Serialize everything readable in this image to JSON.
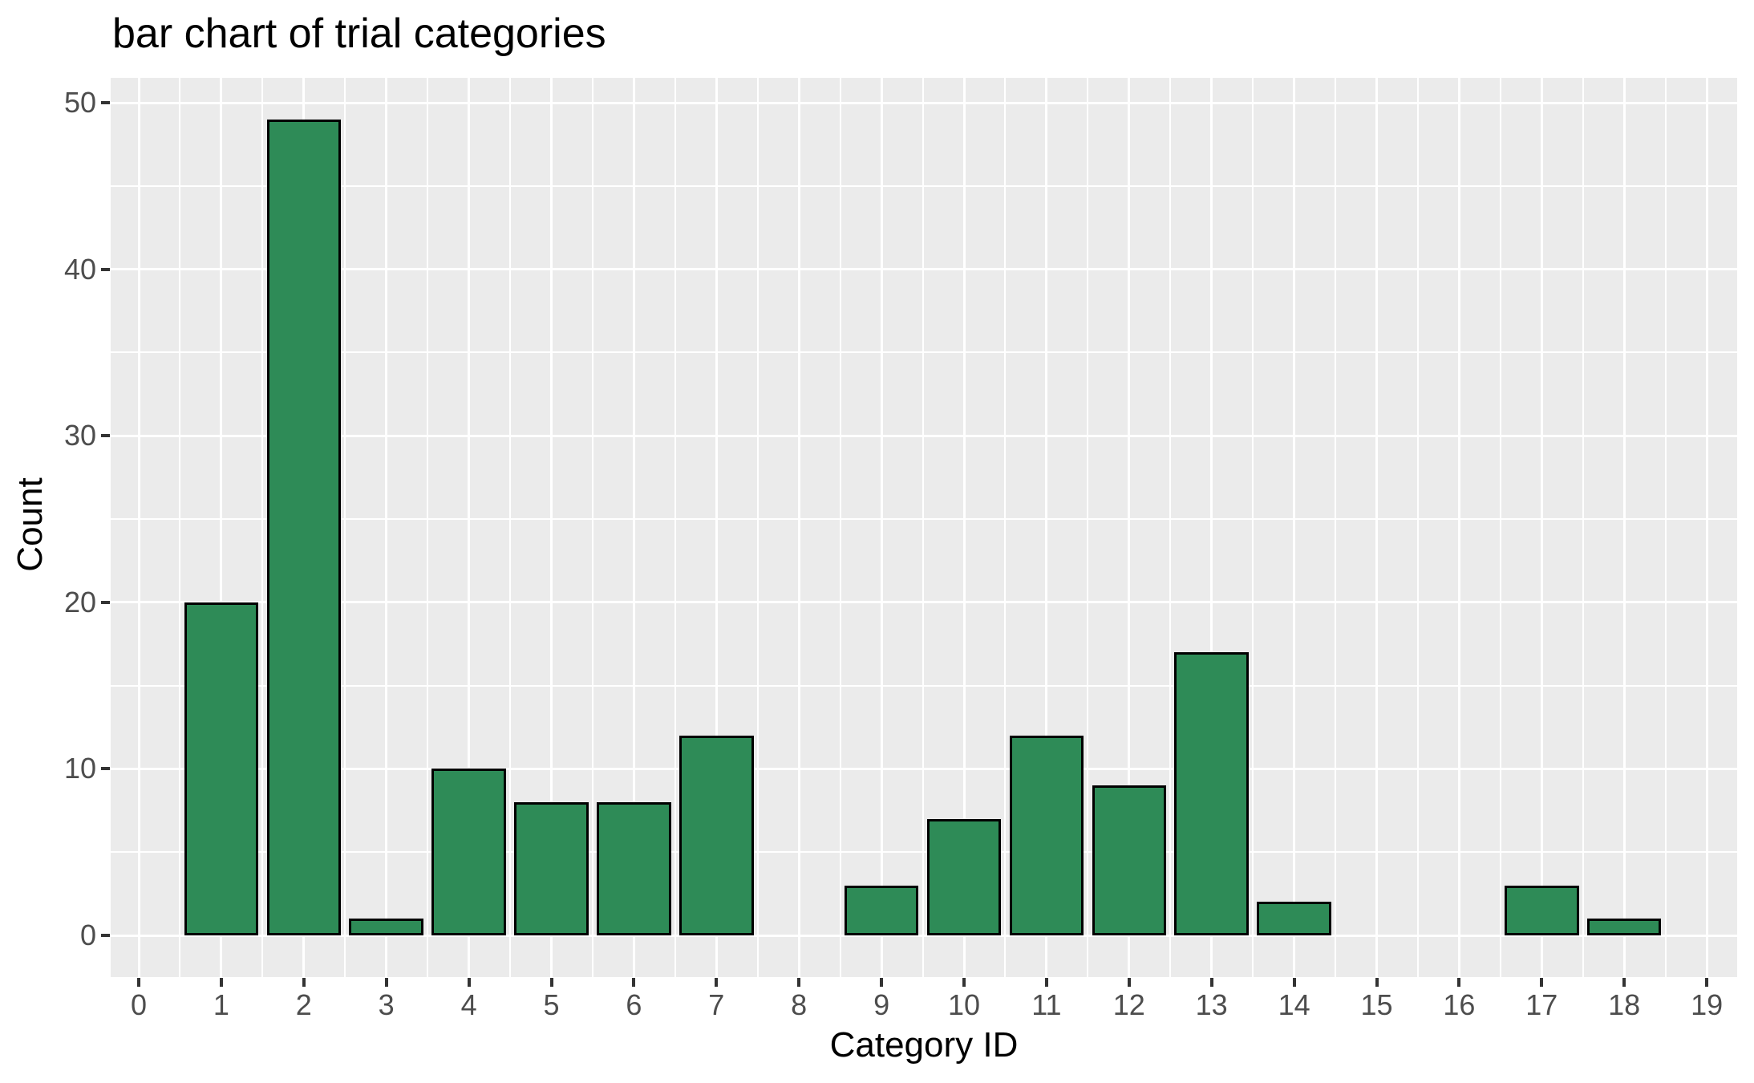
{
  "figure": {
    "title": "bar chart of trial categories",
    "x_axis": {
      "label": "Category ID",
      "tick_labels": [
        "0",
        "1",
        "2",
        "3",
        "4",
        "5",
        "6",
        "7",
        "8",
        "9",
        "10",
        "11",
        "12",
        "13",
        "14",
        "15",
        "16",
        "17",
        "18",
        "19"
      ]
    },
    "y_axis": {
      "label": "Count",
      "tick_labels": [
        "0",
        "10",
        "20",
        "30",
        "40",
        "50"
      ]
    },
    "colors": {
      "bar_fill": "#2E8B57",
      "bar_stroke": "#000000",
      "panel_background": "#EBEBEB",
      "gridline": "#FFFFFF",
      "tick_mark": "#333333",
      "tick_label": "#4D4D4D",
      "text": "#000000"
    }
  },
  "chart_data": {
    "type": "bar",
    "title": "bar chart of trial categories",
    "xlabel": "Category ID",
    "ylabel": "Count",
    "categories": [
      0,
      1,
      2,
      3,
      4,
      5,
      6,
      7,
      8,
      9,
      10,
      11,
      12,
      13,
      14,
      15,
      16,
      17,
      18,
      19
    ],
    "values": [
      0,
      20,
      49,
      1,
      10,
      8,
      8,
      12,
      0,
      3,
      7,
      12,
      9,
      17,
      2,
      0,
      0,
      3,
      1,
      0
    ],
    "xlim": [
      -0.35,
      19.35
    ],
    "ylim": [
      0,
      50
    ],
    "yticks": [
      0,
      10,
      20,
      30,
      40,
      50
    ],
    "ytick_minor": [
      5,
      15,
      25,
      35,
      45
    ],
    "bar_width": 0.9,
    "grid": "on",
    "legend": "none"
  }
}
